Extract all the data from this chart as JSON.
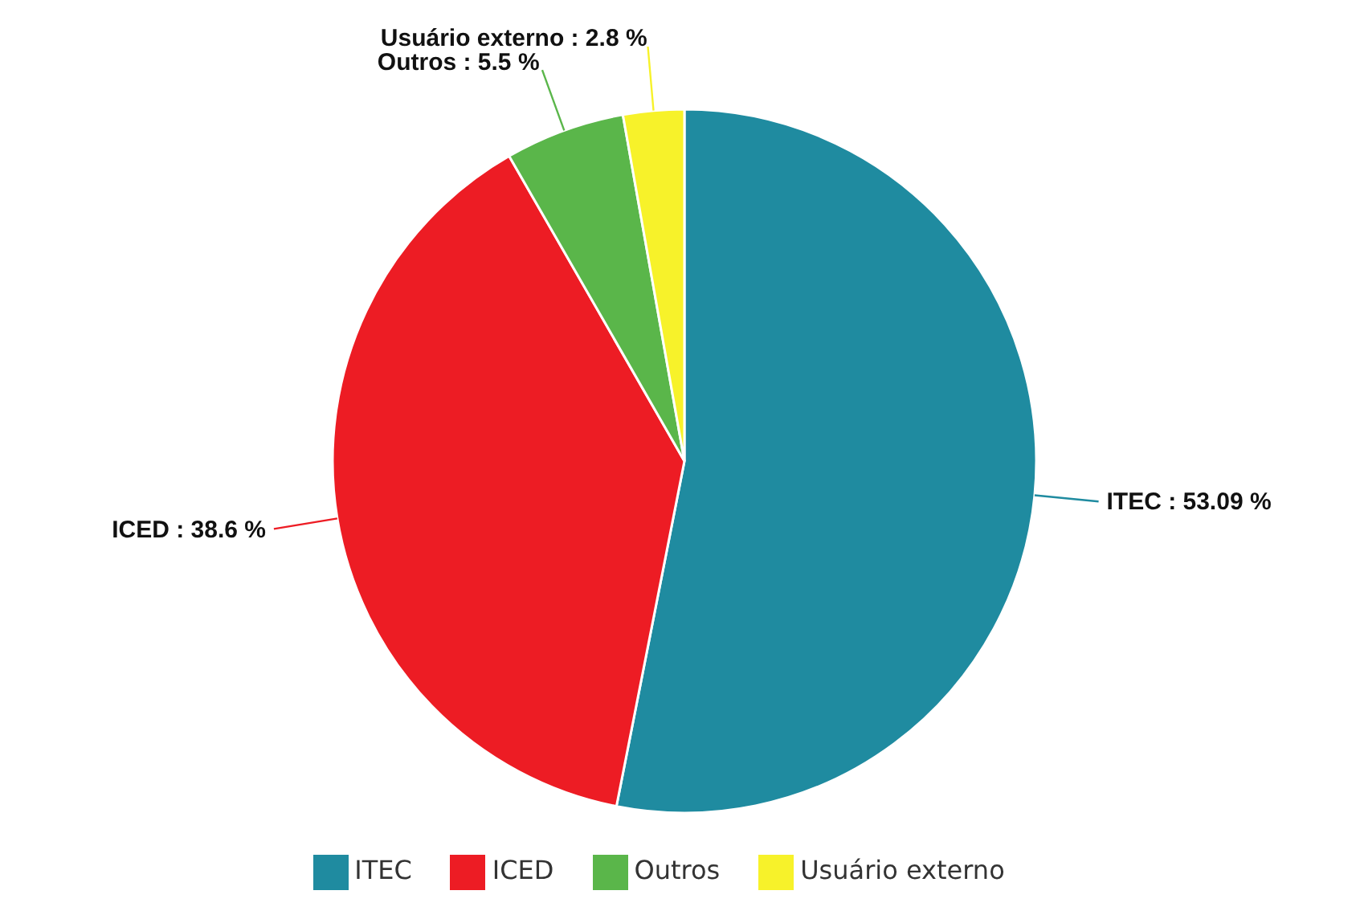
{
  "chart_data": {
    "type": "pie",
    "categories": [
      "ITEC",
      "ICED",
      "Outros",
      "Usuário externo"
    ],
    "values": [
      53.09,
      38.6,
      5.5,
      2.8
    ],
    "value_labels": [
      "ITEC : 53.09 %",
      "ICED : 38.6 %",
      "Outros : 5.5 %",
      "Usuário externo : 2.8 %"
    ],
    "colors": [
      "#1f8ba0",
      "#ed1c24",
      "#5ab64a",
      "#f7f22a"
    ],
    "legend": "bottom"
  }
}
